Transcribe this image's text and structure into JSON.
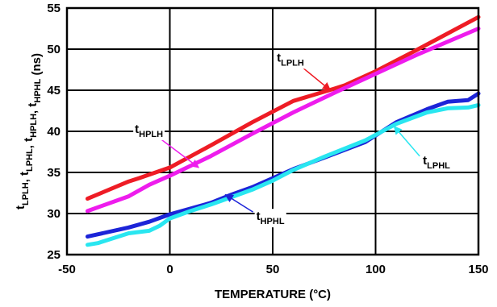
{
  "chart_data": {
    "type": "line",
    "xlabel": "TEMPERATURE (°C)",
    "ylabel": {
      "base": "t",
      "subs": [
        "LPLH",
        "LPHL",
        "HPLH",
        "HPHL"
      ],
      "unit": " (ns)"
    },
    "xlim": [
      -50,
      150
    ],
    "ylim": [
      25,
      55
    ],
    "xticks": [
      -50,
      0,
      50,
      100,
      150
    ],
    "yticks": [
      25,
      30,
      35,
      40,
      45,
      50,
      55
    ],
    "grid": true,
    "series": [
      {
        "name": "tLPLH",
        "label_base": "t",
        "label_sub": "LPLH",
        "color": "#ee1c25",
        "x": [
          -40,
          -20,
          -15,
          0,
          20,
          40,
          60,
          80,
          85,
          100,
          120,
          150
        ],
        "y": [
          31.8,
          33.9,
          34.3,
          35.6,
          38.3,
          41.1,
          43.7,
          45.2,
          45.6,
          47.3,
          49.9,
          53.9
        ]
      },
      {
        "name": "tHPLH",
        "label_base": "t",
        "label_sub": "HPLH",
        "color": "#ee1ced",
        "x": [
          -40,
          -20,
          -10,
          0,
          20,
          40,
          60,
          80,
          100,
          120,
          150
        ],
        "y": [
          30.3,
          32.1,
          33.5,
          34.6,
          37.0,
          39.7,
          42.3,
          44.7,
          47.0,
          49.3,
          52.5
        ]
      },
      {
        "name": "tHPHL",
        "label_base": "t",
        "label_sub": "HPHL",
        "color": "#1c24d8",
        "x": [
          -40,
          -20,
          -10,
          0,
          10,
          20,
          30,
          40,
          50,
          60,
          75,
          95,
          110,
          125,
          135,
          145,
          150
        ],
        "y": [
          27.2,
          28.3,
          29.0,
          29.9,
          30.6,
          31.3,
          32.3,
          33.2,
          34.3,
          35.4,
          36.8,
          38.7,
          41.1,
          42.7,
          43.6,
          43.8,
          44.6
        ]
      },
      {
        "name": "tLPHL",
        "label_base": "t",
        "label_sub": "LPHL",
        "color": "#29e6f0",
        "x": [
          -40,
          -35,
          -20,
          -10,
          -5,
          0,
          10,
          20,
          30,
          40,
          50,
          60,
          75,
          95,
          110,
          125,
          135,
          145,
          150
        ],
        "y": [
          26.2,
          26.4,
          27.6,
          27.9,
          28.5,
          29.4,
          30.3,
          31.1,
          32.0,
          32.9,
          34.0,
          35.3,
          36.9,
          38.9,
          40.9,
          42.3,
          42.8,
          42.9,
          43.2
        ]
      }
    ],
    "annotations": [
      {
        "series": 0,
        "text_x": 52,
        "text_y": 48.5,
        "arrow_x": 78,
        "arrow_y": 45.0
      },
      {
        "series": 1,
        "text_x": -17,
        "text_y": 39.8,
        "arrow_x": 14,
        "arrow_y": 35.6
      },
      {
        "series": 2,
        "text_x": 42,
        "text_y": 29.2,
        "arrow_x": 27,
        "arrow_y": 32.3
      },
      {
        "series": 3,
        "text_x": 123,
        "text_y": 36.0,
        "arrow_x": 109,
        "arrow_y": 40.6
      }
    ]
  }
}
